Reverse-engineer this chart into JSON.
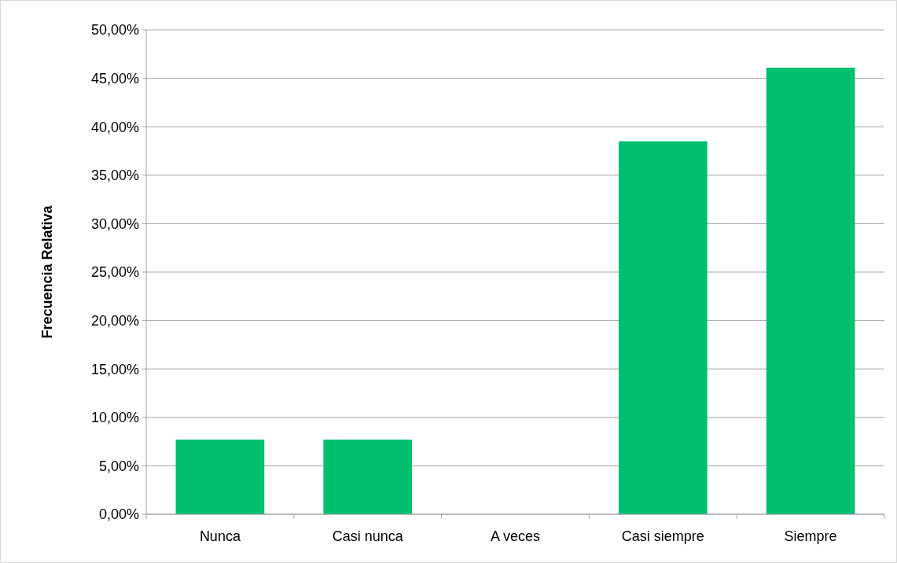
{
  "chart_data": {
    "type": "bar",
    "ylabel": "Frecuencia Relativa",
    "categories": [
      "Nunca",
      "Casi nunca",
      "A veces",
      "Casi siempre",
      "Siempre"
    ],
    "values": [
      7.7,
      7.7,
      0,
      38.5,
      46.1
    ],
    "color": "#00bf6f",
    "ylim": [
      0,
      50
    ],
    "yticks": [
      {
        "value": 0,
        "label": "0,00%"
      },
      {
        "value": 5,
        "label": "5,00%"
      },
      {
        "value": 10,
        "label": "10,00%"
      },
      {
        "value": 15,
        "label": "15,00%"
      },
      {
        "value": 20,
        "label": "20,00%"
      },
      {
        "value": 25,
        "label": "25,00%"
      },
      {
        "value": 30,
        "label": "30,00%"
      },
      {
        "value": 35,
        "label": "35,00%"
      },
      {
        "value": 40,
        "label": "40,00%"
      },
      {
        "value": 45,
        "label": "45,00%"
      },
      {
        "value": 50,
        "label": "50,00%"
      }
    ],
    "grid": "y"
  }
}
